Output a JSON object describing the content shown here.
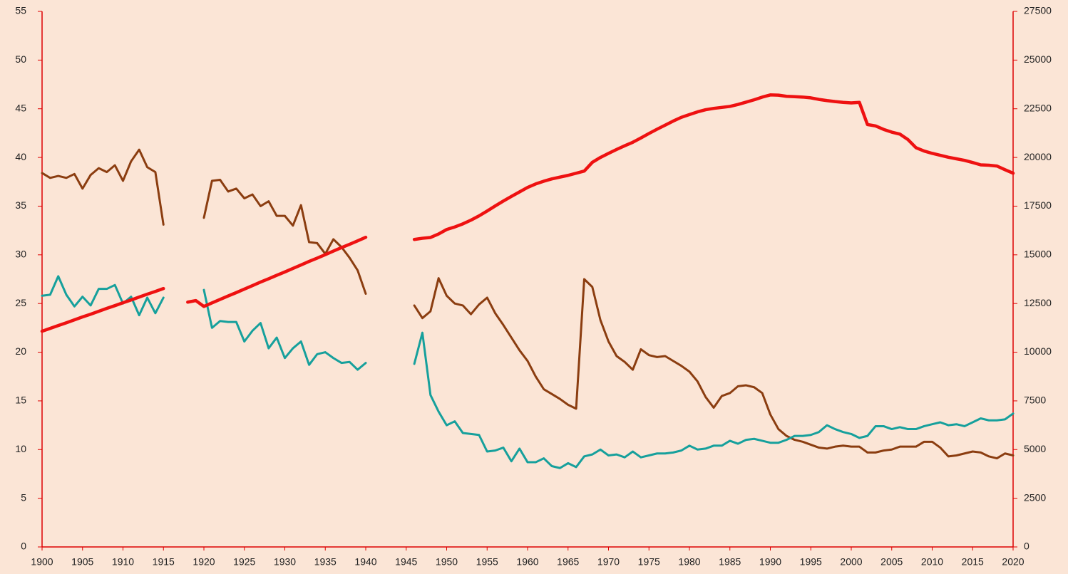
{
  "chart_data": {
    "type": "line",
    "x": [
      1900,
      1901,
      1902,
      1903,
      1904,
      1905,
      1906,
      1907,
      1908,
      1909,
      1910,
      1911,
      1912,
      1913,
      1914,
      1915,
      1916,
      1917,
      1918,
      1919,
      1920,
      1921,
      1922,
      1923,
      1924,
      1925,
      1926,
      1927,
      1928,
      1929,
      1930,
      1931,
      1932,
      1933,
      1934,
      1935,
      1936,
      1937,
      1938,
      1939,
      1940,
      1941,
      1942,
      1943,
      1944,
      1945,
      1946,
      1947,
      1948,
      1949,
      1950,
      1951,
      1952,
      1953,
      1954,
      1955,
      1956,
      1957,
      1958,
      1959,
      1960,
      1961,
      1962,
      1963,
      1964,
      1965,
      1966,
      1967,
      1968,
      1969,
      1970,
      1971,
      1972,
      1973,
      1974,
      1975,
      1976,
      1977,
      1978,
      1979,
      1980,
      1981,
      1982,
      1983,
      1984,
      1985,
      1986,
      1987,
      1988,
      1989,
      1990,
      1991,
      1992,
      1993,
      1994,
      1995,
      1996,
      1997,
      1998,
      1999,
      2000,
      2001,
      2002,
      2003,
      2004,
      2005,
      2006,
      2007,
      2008,
      2009,
      2010,
      2011,
      2012,
      2013,
      2014,
      2015,
      2016,
      2017,
      2018,
      2019,
      2020
    ],
    "series": [
      {
        "color": "#8b3d10",
        "values": [
          38.4,
          37.9,
          38.1,
          37.9,
          38.3,
          36.8,
          38.2,
          38.9,
          38.5,
          39.2,
          37.6,
          39.6,
          40.8,
          39.0,
          38.5,
          33.1,
          null,
          null,
          null,
          null,
          33.8,
          37.6,
          37.7,
          36.5,
          36.8,
          35.8,
          36.2,
          35.0,
          35.5,
          34.0,
          34.0,
          33.0,
          35.1,
          31.3,
          31.2,
          30.1,
          31.6,
          30.8,
          29.7,
          28.4,
          26.0,
          null,
          null,
          null,
          null,
          null,
          24.8,
          23.5,
          24.2,
          27.6,
          25.8,
          25.0,
          24.8,
          23.9,
          24.9,
          25.6,
          24.0,
          22.8,
          21.5,
          20.2,
          19.1,
          17.5,
          16.2,
          15.7,
          15.2,
          14.6,
          14.2,
          27.5,
          26.7,
          23.3,
          21.1,
          19.6,
          19.0,
          18.2,
          20.3,
          19.7,
          19.5,
          19.6,
          19.1,
          18.6,
          18.0,
          17.0,
          15.4,
          14.3,
          15.5,
          15.8,
          16.5,
          16.6,
          16.4,
          15.8,
          13.6,
          12.1,
          11.4,
          11.0,
          10.8,
          10.5,
          10.2,
          10.1,
          10.3,
          10.4,
          10.3,
          10.3,
          9.7,
          9.7,
          9.9,
          10.0,
          10.3,
          10.3,
          10.3,
          10.8,
          10.8,
          10.2,
          9.3,
          9.4,
          9.6,
          9.8,
          9.7,
          9.3,
          9.1,
          9.6,
          9.4
        ]
      },
      {
        "color": "#16a09c",
        "values": [
          25.8,
          25.9,
          27.8,
          25.9,
          24.7,
          25.7,
          24.8,
          26.5,
          26.5,
          26.9,
          25.0,
          25.7,
          23.8,
          25.6,
          24.0,
          25.6,
          null,
          null,
          null,
          null,
          26.4,
          22.5,
          23.2,
          23.1,
          23.1,
          21.1,
          22.2,
          23.0,
          20.4,
          21.5,
          19.4,
          20.4,
          21.1,
          18.7,
          19.8,
          20.0,
          19.4,
          18.9,
          19.0,
          18.2,
          18.9,
          null,
          null,
          null,
          null,
          null,
          18.8,
          22.0,
          15.6,
          13.9,
          12.5,
          12.9,
          11.7,
          11.6,
          11.5,
          9.8,
          9.9,
          10.2,
          8.8,
          10.1,
          8.7,
          8.7,
          9.1,
          8.3,
          8.1,
          8.6,
          8.2,
          9.3,
          9.5,
          10.0,
          9.4,
          9.5,
          9.2,
          9.8,
          9.2,
          9.4,
          9.6,
          9.6,
          9.7,
          9.9,
          10.4,
          10.0,
          10.1,
          10.4,
          10.4,
          10.9,
          10.6,
          11.0,
          11.1,
          10.9,
          10.7,
          10.7,
          11.0,
          11.4,
          11.4,
          11.5,
          11.8,
          12.5,
          12.1,
          11.8,
          11.6,
          11.2,
          11.4,
          12.4,
          12.4,
          12.1,
          12.3,
          12.1,
          12.1,
          12.4,
          12.6,
          12.8,
          12.5,
          12.6,
          12.4,
          12.8,
          13.2,
          13.0,
          13.0,
          13.1,
          13.7
        ]
      },
      {
        "color": "#ee1111",
        "axis": "y2",
        "values": [
          11075,
          11220,
          11370,
          11510,
          11660,
          11810,
          11950,
          12100,
          12250,
          12390,
          12540,
          12680,
          12830,
          12980,
          13120,
          13270,
          null,
          null,
          12570,
          12650,
          12350,
          12530,
          12710,
          12890,
          13060,
          13240,
          13420,
          13600,
          13770,
          13950,
          14120,
          14300,
          14480,
          14660,
          14830,
          15010,
          15190,
          15370,
          15540,
          15720,
          15900,
          null,
          null,
          null,
          null,
          null,
          15790,
          15850,
          15890,
          16070,
          16300,
          16430,
          16590,
          16780,
          17000,
          17250,
          17510,
          17760,
          18000,
          18230,
          18460,
          18640,
          18780,
          18900,
          18990,
          19080,
          19190,
          19300,
          19750,
          20000,
          20210,
          20410,
          20600,
          20780,
          21000,
          21230,
          21450,
          21660,
          21870,
          22060,
          22200,
          22340,
          22450,
          22520,
          22570,
          22620,
          22720,
          22840,
          22960,
          23100,
          23210,
          23200,
          23140,
          23120,
          23100,
          23060,
          22980,
          22920,
          22870,
          22830,
          22800,
          22830,
          21690,
          21620,
          21440,
          21300,
          21200,
          20920,
          20500,
          20330,
          20210,
          20110,
          20010,
          19930,
          19850,
          19740,
          19620,
          19600,
          19560,
          19370,
          19190
        ]
      }
    ],
    "xlim": [
      1900,
      2020
    ],
    "xticks": [
      1900,
      1905,
      1910,
      1915,
      1920,
      1925,
      1930,
      1935,
      1940,
      1945,
      1950,
      1955,
      1960,
      1965,
      1970,
      1975,
      1980,
      1985,
      1990,
      1995,
      2000,
      2005,
      2010,
      2015,
      2020
    ],
    "ylim": [
      0,
      55
    ],
    "yticks": [
      0,
      5,
      10,
      15,
      20,
      25,
      30,
      35,
      40,
      45,
      50,
      55
    ],
    "y2lim": [
      0,
      27500
    ],
    "y2ticks": [
      0,
      2500,
      5000,
      7500,
      10000,
      12500,
      15000,
      17500,
      20000,
      22500,
      25000,
      27500
    ],
    "axis_color": "#dd0000"
  }
}
